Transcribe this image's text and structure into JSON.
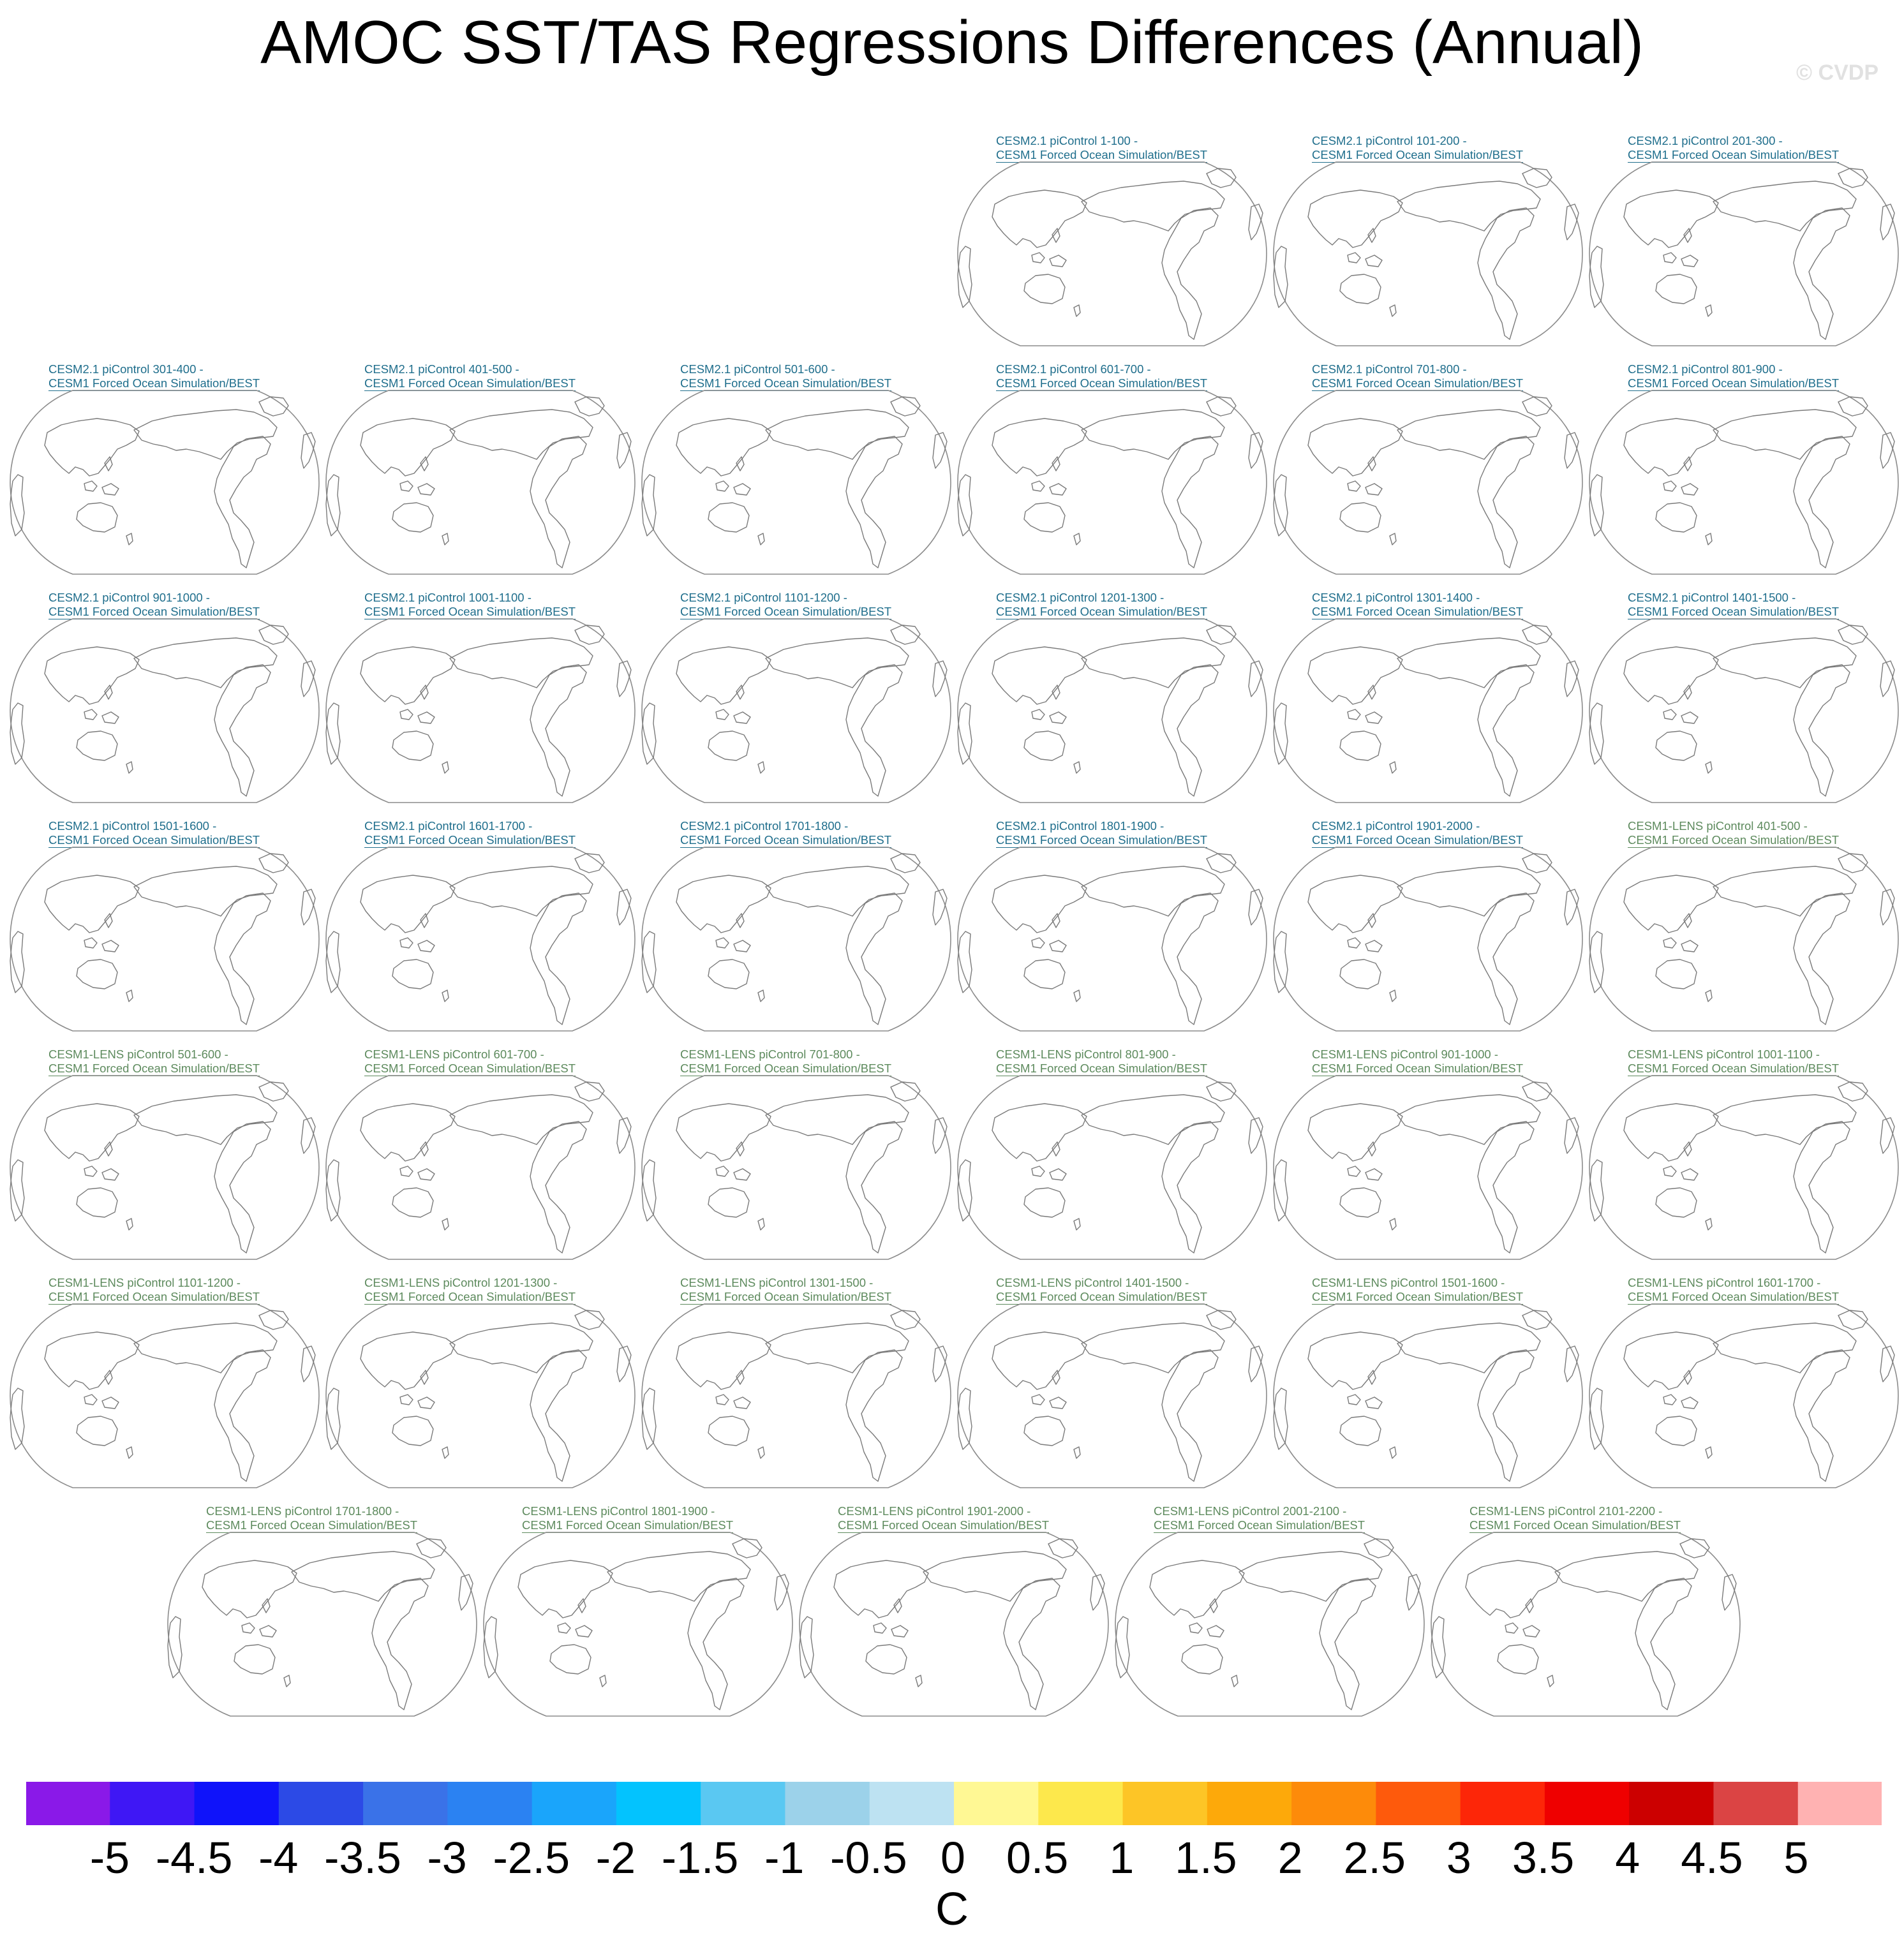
{
  "title": "AMOC SST/TAS Regressions Differences (Annual)",
  "watermark": "© CVDP",
  "panels": [
    {
      "l1": "CESM2.1 piControl 1-100 -",
      "l2": "CESM1 Forced Ocean Simulation/BEST",
      "group": "cesm2"
    },
    {
      "l1": "CESM2.1 piControl 101-200 -",
      "l2": "CESM1 Forced Ocean Simulation/BEST",
      "group": "cesm2"
    },
    {
      "l1": "CESM2.1 piControl 201-300 -",
      "l2": "CESM1 Forced Ocean Simulation/BEST",
      "group": "cesm2"
    },
    {
      "l1": "CESM2.1 piControl 301-400 -",
      "l2": "CESM1 Forced Ocean Simulation/BEST",
      "group": "cesm2"
    },
    {
      "l1": "CESM2.1 piControl 401-500 -",
      "l2": "CESM1 Forced Ocean Simulation/BEST",
      "group": "cesm2"
    },
    {
      "l1": "CESM2.1 piControl 501-600 -",
      "l2": "CESM1 Forced Ocean Simulation/BEST",
      "group": "cesm2"
    },
    {
      "l1": "CESM2.1 piControl 601-700 -",
      "l2": "CESM1 Forced Ocean Simulation/BEST",
      "group": "cesm2"
    },
    {
      "l1": "CESM2.1 piControl 701-800 -",
      "l2": "CESM1 Forced Ocean Simulation/BEST",
      "group": "cesm2"
    },
    {
      "l1": "CESM2.1 piControl 801-900 -",
      "l2": "CESM1 Forced Ocean Simulation/BEST",
      "group": "cesm2"
    },
    {
      "l1": "CESM2.1 piControl 901-1000 -",
      "l2": "CESM1 Forced Ocean Simulation/BEST",
      "group": "cesm2"
    },
    {
      "l1": "CESM2.1 piControl 1001-1100 -",
      "l2": "CESM1 Forced Ocean Simulation/BEST",
      "group": "cesm2"
    },
    {
      "l1": "CESM2.1 piControl 1101-1200 -",
      "l2": "CESM1 Forced Ocean Simulation/BEST",
      "group": "cesm2"
    },
    {
      "l1": "CESM2.1 piControl 1201-1300 -",
      "l2": "CESM1 Forced Ocean Simulation/BEST",
      "group": "cesm2"
    },
    {
      "l1": "CESM2.1 piControl 1301-1400 -",
      "l2": "CESM1 Forced Ocean Simulation/BEST",
      "group": "cesm2"
    },
    {
      "l1": "CESM2.1 piControl 1401-1500 -",
      "l2": "CESM1 Forced Ocean Simulation/BEST",
      "group": "cesm2"
    },
    {
      "l1": "CESM2.1 piControl 1501-1600 -",
      "l2": "CESM1 Forced Ocean Simulation/BEST",
      "group": "cesm2"
    },
    {
      "l1": "CESM2.1 piControl 1601-1700 -",
      "l2": "CESM1 Forced Ocean Simulation/BEST",
      "group": "cesm2"
    },
    {
      "l1": "CESM2.1 piControl 1701-1800 -",
      "l2": "CESM1 Forced Ocean Simulation/BEST",
      "group": "cesm2"
    },
    {
      "l1": "CESM2.1 piControl 1801-1900 -",
      "l2": "CESM1 Forced Ocean Simulation/BEST",
      "group": "cesm2"
    },
    {
      "l1": "CESM2.1 piControl 1901-2000 -",
      "l2": "CESM1 Forced Ocean Simulation/BEST",
      "group": "cesm2"
    },
    {
      "l1": "CESM1-LENS piControl 401-500 -",
      "l2": "CESM1 Forced Ocean Simulation/BEST",
      "group": "lens"
    },
    {
      "l1": "CESM1-LENS piControl 501-600 -",
      "l2": "CESM1 Forced Ocean Simulation/BEST",
      "group": "lens"
    },
    {
      "l1": "CESM1-LENS piControl 601-700 -",
      "l2": "CESM1 Forced Ocean Simulation/BEST",
      "group": "lens"
    },
    {
      "l1": "CESM1-LENS piControl 701-800 -",
      "l2": "CESM1 Forced Ocean Simulation/BEST",
      "group": "lens"
    },
    {
      "l1": "CESM1-LENS piControl 801-900 -",
      "l2": "CESM1 Forced Ocean Simulation/BEST",
      "group": "lens"
    },
    {
      "l1": "CESM1-LENS piControl 901-1000 -",
      "l2": "CESM1 Forced Ocean Simulation/BEST",
      "group": "lens"
    },
    {
      "l1": "CESM1-LENS piControl 1001-1100 -",
      "l2": "CESM1 Forced Ocean Simulation/BEST",
      "group": "lens"
    },
    {
      "l1": "CESM1-LENS piControl 1101-1200 -",
      "l2": "CESM1 Forced Ocean Simulation/BEST",
      "group": "lens"
    },
    {
      "l1": "CESM1-LENS piControl 1201-1300 -",
      "l2": "CESM1 Forced Ocean Simulation/BEST",
      "group": "lens"
    },
    {
      "l1": "CESM1-LENS piControl 1301-1500 -",
      "l2": "CESM1 Forced Ocean Simulation/BEST",
      "group": "lens"
    },
    {
      "l1": "CESM1-LENS piControl 1401-1500 -",
      "l2": "CESM1 Forced Ocean Simulation/BEST",
      "group": "lens"
    },
    {
      "l1": "CESM1-LENS piControl 1501-1600 -",
      "l2": "CESM1 Forced Ocean Simulation/BEST",
      "group": "lens"
    },
    {
      "l1": "CESM1-LENS piControl 1601-1700 -",
      "l2": "CESM1 Forced Ocean Simulation/BEST",
      "group": "lens"
    },
    {
      "l1": "CESM1-LENS piControl 1701-1800 -",
      "l2": "CESM1 Forced Ocean Simulation/BEST",
      "group": "lens"
    },
    {
      "l1": "CESM1-LENS piControl 1801-1900 -",
      "l2": "CESM1 Forced Ocean Simulation/BEST",
      "group": "lens"
    },
    {
      "l1": "CESM1-LENS piControl 1901-2000 -",
      "l2": "CESM1 Forced Ocean Simulation/BEST",
      "group": "lens"
    },
    {
      "l1": "CESM1-LENS piControl 2001-2100 -",
      "l2": "CESM1 Forced Ocean Simulation/BEST",
      "group": "lens"
    },
    {
      "l1": "CESM1-LENS piControl 2101-2200 -",
      "l2": "CESM1 Forced Ocean Simulation/BEST",
      "group": "lens"
    }
  ],
  "chart_data": {
    "type": "heatmap",
    "title": "AMOC SST/TAS Regressions Differences (Annual)",
    "projection": "Robinson, Pacific-centered world maps",
    "panel_count": 38,
    "colorbar": {
      "units": "C",
      "levels": [
        -5,
        -4.5,
        -4,
        -3.5,
        -3,
        -2.5,
        -2,
        -1.5,
        -1,
        -0.5,
        0,
        0.5,
        1,
        1.5,
        2,
        2.5,
        3,
        3.5,
        4,
        4.5,
        5
      ],
      "tick_labels": [
        "-5",
        "-4.5",
        "-4",
        "-3.5",
        "-3",
        "-2.5",
        "-2",
        "-1.5",
        "-1",
        "-0.5",
        "0",
        "0.5",
        "1",
        "1.5",
        "2",
        "2.5",
        "3",
        "3.5",
        "4",
        "4.5",
        "5"
      ],
      "colors": [
        "#8a19e8",
        "#3f17f5",
        "#0f13fa",
        "#2c4ae6",
        "#3a72e8",
        "#2b82f2",
        "#1aa5fb",
        "#03c3fe",
        "#5ac8f2",
        "#9cd2ea",
        "#bde2f2",
        "#fff894",
        "#fde84c",
        "#fdc526",
        "#fda90a",
        "#fd8b0a",
        "#fe5a0c",
        "#fd2608",
        "#ef0000",
        "#cc0000",
        "#db4444",
        "#ffb2b2"
      ]
    }
  }
}
